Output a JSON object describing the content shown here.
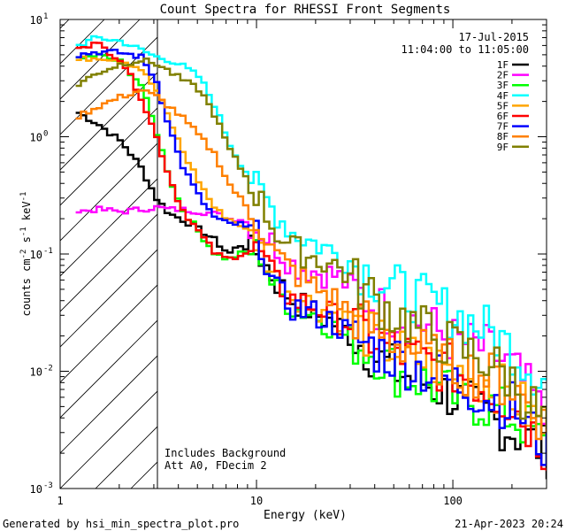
{
  "footer": {
    "generator": "Generated by hsi_min_spectra_plot.pro",
    "timestamp": "21-Apr-2023 20:24"
  },
  "chart_data": {
    "type": "line",
    "title": "Count Spectra for RHESSI Front Segments",
    "xlabel": "Energy (keV)",
    "ylabel": "counts cm-2 s-1 keV-1",
    "xscale": "log",
    "yscale": "log",
    "xlim": [
      1,
      300
    ],
    "ylim": [
      0.001,
      10
    ],
    "x_ticks": [
      {
        "value": 1,
        "label": "1"
      },
      {
        "value": 10,
        "label": "10"
      },
      {
        "value": 100,
        "label": "100"
      }
    ],
    "y_ticks": [
      {
        "value": 10,
        "base": "10",
        "exp": "1"
      },
      {
        "value": 1,
        "base": "10",
        "exp": "0"
      },
      {
        "value": 0.1,
        "base": "10",
        "exp": "-1"
      },
      {
        "value": 0.01,
        "base": "10",
        "exp": "-2"
      },
      {
        "value": 0.001,
        "base": "10",
        "exp": "-3"
      }
    ],
    "date": "17-Jul-2015",
    "time_range": "11:04:00 to 11:05:00",
    "annotations": [
      "Includes Background",
      "Att A0, FDecim 2"
    ],
    "shaded_region_keV": [
      1,
      3
    ],
    "legend_position": "top-right",
    "series": [
      {
        "name": "1F",
        "color": "#000000",
        "values": [
          [
            1.2,
            1.6
          ],
          [
            1.5,
            1.3
          ],
          [
            2,
            0.9
          ],
          [
            2.5,
            0.55
          ],
          [
            3,
            0.3
          ],
          [
            3.5,
            0.22
          ],
          [
            4,
            0.2
          ],
          [
            5,
            0.16
          ],
          [
            6,
            0.13
          ],
          [
            7,
            0.1
          ],
          [
            8,
            0.12
          ],
          [
            10,
            0.1
          ],
          [
            12,
            0.06
          ],
          [
            15,
            0.04
          ],
          [
            20,
            0.03
          ],
          [
            25,
            0.025
          ],
          [
            30,
            0.02
          ],
          [
            40,
            0.013
          ],
          [
            50,
            0.01
          ],
          [
            70,
            0.008
          ],
          [
            100,
            0.006
          ],
          [
            150,
            0.004
          ],
          [
            200,
            0.003
          ],
          [
            250,
            0.0025
          ],
          [
            300,
            0.002
          ]
        ]
      },
      {
        "name": "2F",
        "color": "#ff00ff",
        "values": [
          [
            1.2,
            0.23
          ],
          [
            1.5,
            0.24
          ],
          [
            2,
            0.23
          ],
          [
            2.5,
            0.24
          ],
          [
            3,
            0.25
          ],
          [
            3.5,
            0.24
          ],
          [
            4,
            0.24
          ],
          [
            5,
            0.23
          ],
          [
            6,
            0.22
          ],
          [
            7,
            0.2
          ],
          [
            8,
            0.2
          ],
          [
            10,
            0.16
          ],
          [
            12,
            0.12
          ],
          [
            15,
            0.08
          ],
          [
            20,
            0.07
          ],
          [
            25,
            0.065
          ],
          [
            30,
            0.05
          ],
          [
            40,
            0.035
          ],
          [
            50,
            0.03
          ],
          [
            70,
            0.025
          ],
          [
            100,
            0.018
          ],
          [
            150,
            0.015
          ],
          [
            200,
            0.01
          ],
          [
            250,
            0.006
          ],
          [
            300,
            0.003
          ]
        ]
      },
      {
        "name": "3F",
        "color": "#00ff00",
        "values": [
          [
            1.2,
            4.5
          ],
          [
            1.5,
            5
          ],
          [
            2,
            4.3
          ],
          [
            2.5,
            2.8
          ],
          [
            3,
            1.1
          ],
          [
            3.5,
            0.45
          ],
          [
            4,
            0.25
          ],
          [
            5,
            0.15
          ],
          [
            6,
            0.1
          ],
          [
            7,
            0.09
          ],
          [
            8,
            0.1
          ],
          [
            10,
            0.11
          ],
          [
            12,
            0.05
          ],
          [
            15,
            0.035
          ],
          [
            20,
            0.03
          ],
          [
            25,
            0.022
          ],
          [
            30,
            0.018
          ],
          [
            40,
            0.014
          ],
          [
            50,
            0.01
          ],
          [
            70,
            0.008
          ],
          [
            100,
            0.006
          ],
          [
            150,
            0.005
          ],
          [
            200,
            0.004
          ],
          [
            250,
            0.003
          ],
          [
            300,
            0.002
          ]
        ]
      },
      {
        "name": "4F",
        "color": "#00ffff",
        "values": [
          [
            1.2,
            6
          ],
          [
            1.5,
            7
          ],
          [
            2,
            6.5
          ],
          [
            2.5,
            5.5
          ],
          [
            3,
            4.8
          ],
          [
            3.5,
            4.5
          ],
          [
            4,
            4.1
          ],
          [
            5,
            3.2
          ],
          [
            6,
            1.8
          ],
          [
            7,
            0.9
          ],
          [
            8,
            0.6
          ],
          [
            10,
            0.35
          ],
          [
            12,
            0.23
          ],
          [
            15,
            0.15
          ],
          [
            20,
            0.12
          ],
          [
            25,
            0.1
          ],
          [
            30,
            0.085
          ],
          [
            40,
            0.06
          ],
          [
            50,
            0.05
          ],
          [
            70,
            0.04
          ],
          [
            100,
            0.03
          ],
          [
            150,
            0.022
          ],
          [
            200,
            0.015
          ],
          [
            250,
            0.01
          ],
          [
            300,
            0.008
          ]
        ]
      },
      {
        "name": "5F",
        "color": "#ffa500",
        "values": [
          [
            1.2,
            4.5
          ],
          [
            1.5,
            4.8
          ],
          [
            2,
            4.5
          ],
          [
            2.5,
            3.8
          ],
          [
            3,
            2.5
          ],
          [
            3.5,
            1.4
          ],
          [
            4,
            0.8
          ],
          [
            5,
            0.4
          ],
          [
            6,
            0.24
          ],
          [
            7,
            0.2
          ],
          [
            8,
            0.18
          ],
          [
            10,
            0.12
          ],
          [
            12,
            0.065
          ],
          [
            15,
            0.045
          ],
          [
            20,
            0.035
          ],
          [
            25,
            0.03
          ],
          [
            30,
            0.025
          ],
          [
            40,
            0.018
          ],
          [
            50,
            0.015
          ],
          [
            70,
            0.012
          ],
          [
            100,
            0.01
          ],
          [
            150,
            0.008
          ],
          [
            200,
            0.006
          ],
          [
            250,
            0.004
          ],
          [
            300,
            0.003
          ]
        ]
      },
      {
        "name": "6F",
        "color": "#ff0000",
        "values": [
          [
            1.2,
            6
          ],
          [
            1.5,
            6.2
          ],
          [
            2,
            4.5
          ],
          [
            2.5,
            2.2
          ],
          [
            3,
            1
          ],
          [
            3.5,
            0.45
          ],
          [
            4,
            0.25
          ],
          [
            5,
            0.15
          ],
          [
            6,
            0.1
          ],
          [
            7,
            0.09
          ],
          [
            8,
            0.1
          ],
          [
            10,
            0.11
          ],
          [
            12,
            0.06
          ],
          [
            15,
            0.04
          ],
          [
            20,
            0.035
          ],
          [
            25,
            0.028
          ],
          [
            30,
            0.025
          ],
          [
            40,
            0.018
          ],
          [
            50,
            0.015
          ],
          [
            70,
            0.012
          ],
          [
            100,
            0.01
          ],
          [
            150,
            0.007
          ],
          [
            200,
            0.005
          ],
          [
            250,
            0.003
          ],
          [
            300,
            0.002
          ]
        ]
      },
      {
        "name": "7F",
        "color": "#0000ff",
        "values": [
          [
            1.2,
            5
          ],
          [
            1.5,
            5.3
          ],
          [
            2,
            5.2
          ],
          [
            2.5,
            4.8
          ],
          [
            3,
            3
          ],
          [
            3.5,
            1.2
          ],
          [
            4,
            0.6
          ],
          [
            5,
            0.3
          ],
          [
            6,
            0.2
          ],
          [
            7,
            0.18
          ],
          [
            8,
            0.18
          ],
          [
            10,
            0.14
          ],
          [
            12,
            0.05
          ],
          [
            15,
            0.035
          ],
          [
            20,
            0.03
          ],
          [
            25,
            0.025
          ],
          [
            30,
            0.02
          ],
          [
            40,
            0.015
          ],
          [
            50,
            0.013
          ],
          [
            70,
            0.01
          ],
          [
            100,
            0.008
          ],
          [
            150,
            0.006
          ],
          [
            200,
            0.005
          ],
          [
            250,
            0.003
          ],
          [
            300,
            0.002
          ]
        ]
      },
      {
        "name": "8F",
        "color": "#ff8000",
        "values": [
          [
            1.2,
            1.5
          ],
          [
            1.5,
            1.8
          ],
          [
            2,
            2.2
          ],
          [
            2.5,
            2.5
          ],
          [
            3,
            2.2
          ],
          [
            3.5,
            1.8
          ],
          [
            4,
            1.5
          ],
          [
            5,
            1
          ],
          [
            6,
            0.7
          ],
          [
            7,
            0.4
          ],
          [
            8,
            0.3
          ],
          [
            10,
            0.18
          ],
          [
            12,
            0.1
          ],
          [
            15,
            0.07
          ],
          [
            20,
            0.05
          ],
          [
            25,
            0.04
          ],
          [
            30,
            0.03
          ],
          [
            40,
            0.022
          ],
          [
            50,
            0.018
          ],
          [
            70,
            0.014
          ],
          [
            100,
            0.011
          ],
          [
            150,
            0.009
          ],
          [
            200,
            0.007
          ],
          [
            250,
            0.005
          ],
          [
            300,
            0.003
          ]
        ]
      },
      {
        "name": "9F",
        "color": "#808000",
        "values": [
          [
            1.2,
            2.8
          ],
          [
            1.5,
            3.5
          ],
          [
            2,
            4.2
          ],
          [
            2.5,
            4.5
          ],
          [
            3,
            4.2
          ],
          [
            3.5,
            3.6
          ],
          [
            4,
            3.1
          ],
          [
            5,
            2.5
          ],
          [
            6,
            1.5
          ],
          [
            7,
            0.8
          ],
          [
            8,
            0.55
          ],
          [
            10,
            0.3
          ],
          [
            12,
            0.16
          ],
          [
            15,
            0.11
          ],
          [
            20,
            0.09
          ],
          [
            25,
            0.08
          ],
          [
            30,
            0.06
          ],
          [
            40,
            0.04
          ],
          [
            50,
            0.03
          ],
          [
            70,
            0.022
          ],
          [
            100,
            0.016
          ],
          [
            150,
            0.012
          ],
          [
            200,
            0.008
          ],
          [
            250,
            0.005
          ],
          [
            300,
            0.003
          ]
        ]
      }
    ]
  }
}
